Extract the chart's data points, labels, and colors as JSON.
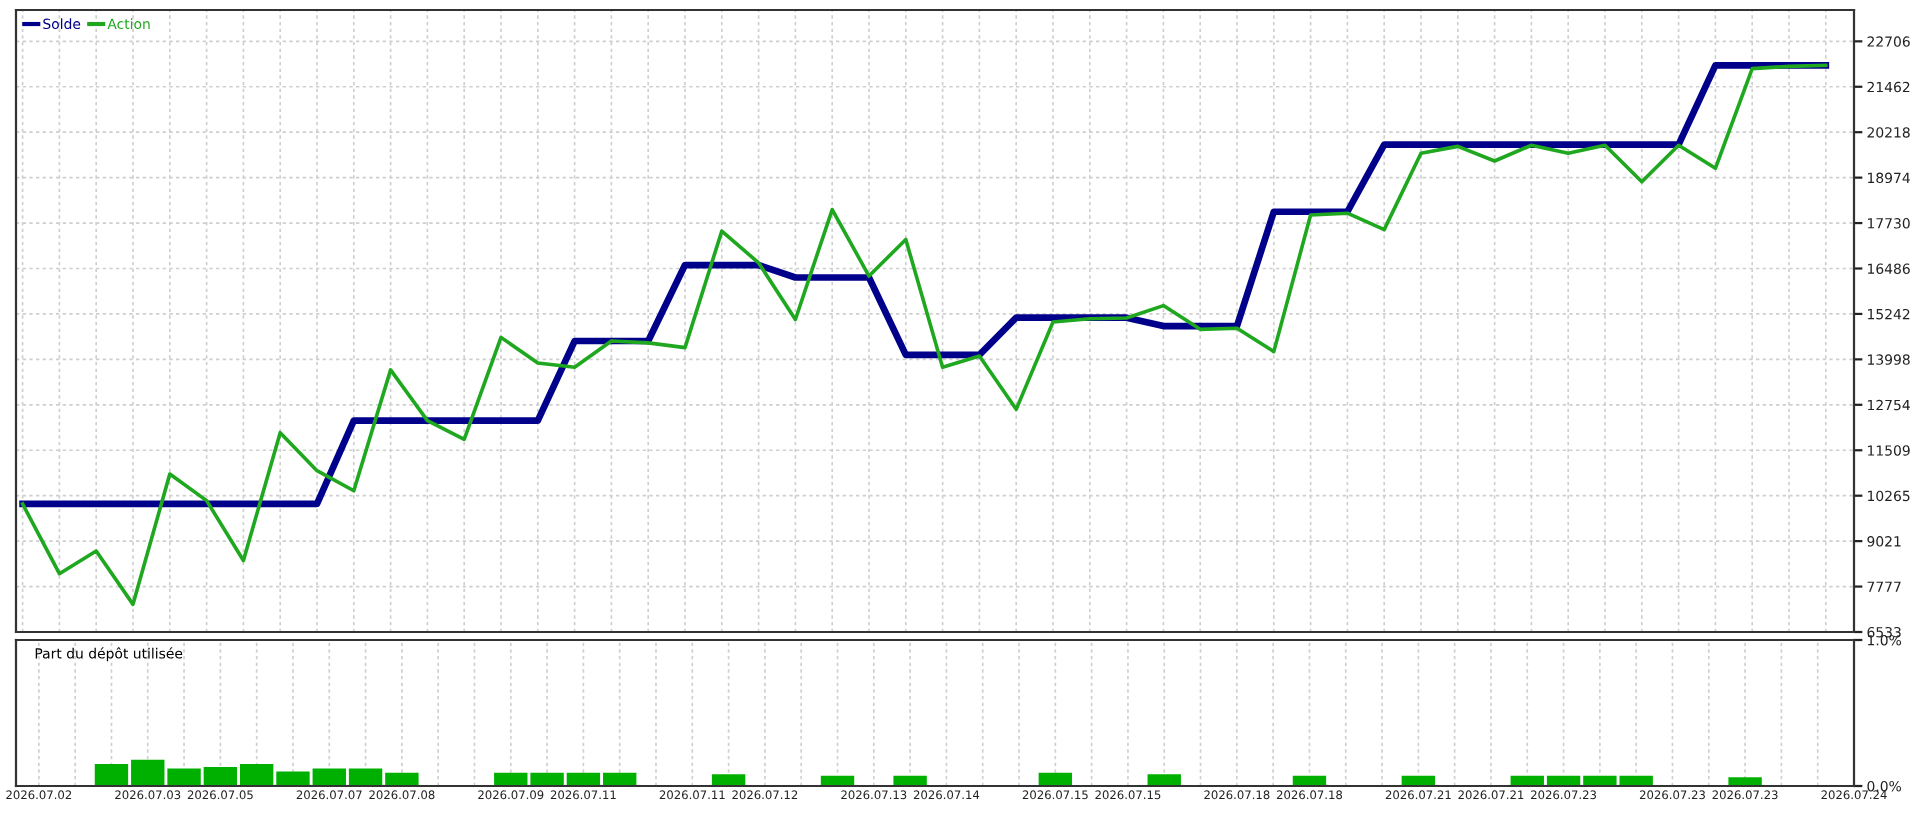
{
  "chart_data": [
    {
      "type": "line",
      "legend": "top left",
      "grid": true,
      "tick_labels": "y",
      "categories": [
        null,
        null,
        null,
        null,
        null,
        null,
        null,
        null,
        null,
        null,
        null,
        null,
        null,
        null,
        null,
        null,
        null,
        null,
        null,
        null,
        null,
        null,
        null,
        null,
        null,
        null,
        null,
        null,
        null,
        null,
        null,
        null,
        null,
        null,
        null,
        null,
        null,
        null,
        null,
        null,
        null,
        null,
        null,
        null,
        null,
        null,
        null,
        null,
        null,
        null
      ],
      "series": [
        {
          "name": "Solde",
          "color": "#00008b",
          "values": [
            10040,
            10040,
            10040,
            10040,
            10040,
            10040,
            10040,
            10040,
            10040,
            12320,
            12320,
            12320,
            12320,
            12320,
            12320,
            14500,
            14500,
            14500,
            16580,
            16580,
            16580,
            16240,
            16240,
            16240,
            14120,
            14120,
            14120,
            15140,
            15140,
            15140,
            15140,
            14910,
            14910,
            14910,
            18040,
            18040,
            18040,
            19880,
            19880,
            19880,
            19880,
            19880,
            19880,
            19880,
            19880,
            19880,
            22050,
            22050,
            22050,
            22050
          ]
        },
        {
          "name": "Action",
          "color": "#1fa81f",
          "values": [
            10040,
            8130,
            8750,
            7290,
            10860,
            10130,
            8490,
            11990,
            10950,
            10400,
            13710,
            12320,
            11810,
            14600,
            13900,
            13780,
            14500,
            14450,
            14320,
            17510,
            16640,
            15090,
            18100,
            16280,
            17280,
            13780,
            14090,
            12630,
            15020,
            15110,
            15130,
            15470,
            14820,
            14850,
            14210,
            17950,
            18000,
            17550,
            19640,
            19830,
            19430,
            19860,
            19640,
            19860,
            18860,
            19860,
            19230,
            21960,
            22020,
            22050
          ]
        }
      ],
      "ylim": [
        6533,
        23564
      ],
      "yticks": [
        6533,
        7777,
        9021,
        10265,
        11509,
        12754,
        13998,
        15242,
        16486,
        17730,
        18974,
        20218,
        21462,
        22706
      ]
    },
    {
      "type": "bar",
      "title": "Part du dépôt utilisée",
      "grid": "x",
      "categories": [
        "2026.07.02",
        null,
        null,
        "2026.07.03",
        null,
        "2026.07.05",
        null,
        null,
        "2026.07.07",
        null,
        "2026.07.08",
        null,
        null,
        "2026.07.09",
        null,
        "2026.07.11",
        null,
        null,
        "2026.07.11",
        null,
        "2026.07.12",
        null,
        null,
        "2026.07.13",
        null,
        "2026.07.14",
        null,
        null,
        "2026.07.15",
        null,
        "2026.07.15",
        null,
        null,
        "2026.07.18",
        null,
        "2026.07.18",
        null,
        null,
        "2026.07.21",
        null,
        "2026.07.21",
        null,
        "2026.07.23",
        null,
        null,
        "2026.07.23",
        null,
        "2026.07.23",
        null,
        null,
        "2026.07.24"
      ],
      "series": [
        {
          "color": "#00b000",
          "values": [
            null,
            null,
            0.15,
            0.18,
            0.12,
            0.13,
            0.15,
            0.1,
            0.12,
            0.12,
            0.09,
            null,
            null,
            0.09,
            0.09,
            0.09,
            0.09,
            null,
            null,
            0.08,
            null,
            null,
            0.07,
            null,
            0.07,
            null,
            null,
            null,
            0.09,
            null,
            null,
            0.08,
            null,
            null,
            null,
            0.07,
            null,
            null,
            0.07,
            null,
            null,
            0.07,
            0.07,
            0.07,
            0.07,
            null,
            null,
            0.06,
            null,
            null,
            null
          ]
        }
      ],
      "ylim": [
        0,
        1.0
      ],
      "yticks": [
        {
          "value": 0,
          "label": "0.0%"
        },
        {
          "value": 1.0,
          "label": "1.0%"
        }
      ]
    }
  ]
}
